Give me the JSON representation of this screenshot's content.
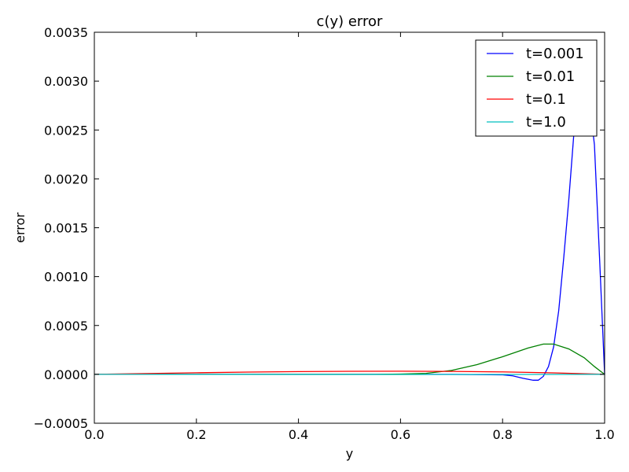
{
  "chart_data": {
    "type": "line",
    "title": "c(y) error",
    "xlabel": "y",
    "ylabel": "error",
    "xlim": [
      0.0,
      1.0
    ],
    "ylim": [
      -0.0005,
      0.0035
    ],
    "grid": false,
    "legend_position": "top-right",
    "xticks": [
      "0.0",
      "0.2",
      "0.4",
      "0.6",
      "0.8",
      "1.0"
    ],
    "xtick_values": [
      0.0,
      0.2,
      0.4,
      0.6,
      0.8,
      1.0
    ],
    "yticks": [
      "−0.0005",
      "0.0000",
      "0.0005",
      "0.0010",
      "0.0015",
      "0.0020",
      "0.0025",
      "0.0030",
      "0.0035"
    ],
    "ytick_values": [
      -0.0005,
      0.0,
      0.0005,
      0.001,
      0.0015,
      0.002,
      0.0025,
      0.003,
      0.0035
    ],
    "series": [
      {
        "name": "t=0.001",
        "color": "#0000ff",
        "x": [
          0.0,
          0.2,
          0.4,
          0.6,
          0.7,
          0.8,
          0.82,
          0.84,
          0.86,
          0.87,
          0.88,
          0.89,
          0.9,
          0.91,
          0.92,
          0.93,
          0.94,
          0.95,
          0.96,
          0.97,
          0.98,
          0.99,
          1.0
        ],
        "y": [
          0.0,
          0.0,
          0.0,
          0.0,
          0.0,
          -5e-06,
          -1.5e-05,
          -4e-05,
          -6e-05,
          -6e-05,
          -2e-05,
          8e-05,
          0.00028,
          0.00065,
          0.0012,
          0.0018,
          0.00248,
          0.00285,
          0.0029,
          0.0028,
          0.00235,
          0.0012,
          0.0
        ]
      },
      {
        "name": "t=0.01",
        "color": "#008000",
        "x": [
          0.0,
          0.55,
          0.6,
          0.65,
          0.7,
          0.75,
          0.8,
          0.85,
          0.88,
          0.9,
          0.93,
          0.96,
          0.98,
          1.0
        ],
        "y": [
          0.0,
          0.0,
          3e-06,
          1e-05,
          4e-05,
          0.0001,
          0.00018,
          0.00027,
          0.00031,
          0.00031,
          0.00026,
          0.00017,
          8e-05,
          0.0
        ]
      },
      {
        "name": "t=0.1",
        "color": "#ff0000",
        "x": [
          0.0,
          0.1,
          0.2,
          0.3,
          0.4,
          0.5,
          0.6,
          0.7,
          0.8,
          0.9,
          1.0
        ],
        "y": [
          0.0,
          8e-06,
          1.6e-05,
          2.3e-05,
          2.8e-05,
          3.1e-05,
          3.2e-05,
          3e-05,
          2.5e-05,
          1.5e-05,
          0.0
        ]
      },
      {
        "name": "t=1.0",
        "color": "#00bfbf",
        "x": [
          0.0,
          0.2,
          0.4,
          0.6,
          0.8,
          1.0
        ],
        "y": [
          0.0,
          0.0,
          -1e-06,
          -1e-06,
          -1e-06,
          0.0
        ]
      }
    ]
  }
}
